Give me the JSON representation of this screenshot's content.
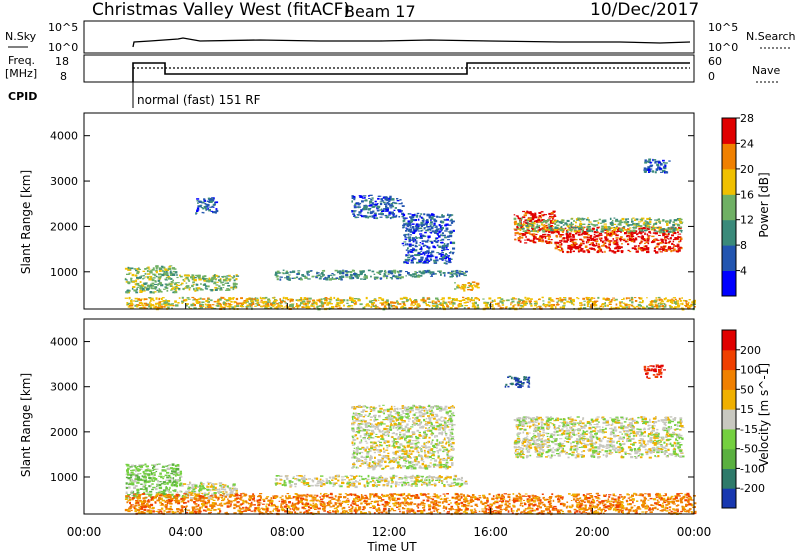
{
  "header": {
    "title": "Christmas Valley West (fitACF)",
    "beam": "Beam 17",
    "date": "10/Dec/2017"
  },
  "status_panels": {
    "nsky_label": "N.Sky",
    "nsky_ticks": [
      "10^5",
      "10^0"
    ],
    "nsearch_label": "N.Search",
    "freq_label_1": "Freq.",
    "freq_label_2": "[MHz]",
    "freq_ticks": [
      "18",
      "8"
    ],
    "nave_ticks": [
      "60",
      "0"
    ],
    "nave_label": "Nave",
    "cpid_label": "CPID",
    "cpid_text": "normal (fast) 151 RF"
  },
  "chart_data": [
    {
      "type": "heatmap",
      "name": "power",
      "ylabel": "Slant Range [km]",
      "yticks": [
        "1000",
        "2000",
        "3000",
        "4000"
      ],
      "ylim": [
        180,
        4500
      ],
      "xlim": [
        0,
        24
      ],
      "colorbar_label": "Power [dB]",
      "colorbar_ticks": [
        "4",
        "8",
        "12",
        "16",
        "20",
        "24",
        "28"
      ],
      "colorbar_colors": [
        "#0000ff",
        "#2255b0",
        "#3a8a7a",
        "#6fb064",
        "#f0c000",
        "#f08000",
        "#e00000"
      ],
      "regions": [
        {
          "x": [
            1.6,
            3.6
          ],
          "y": [
            550,
            1150
          ],
          "level": 3
        },
        {
          "x": [
            3.6,
            6.0
          ],
          "y": [
            600,
            950
          ],
          "level": 3
        },
        {
          "x": [
            7.5,
            12.5
          ],
          "y": [
            850,
            1050
          ],
          "level": 2
        },
        {
          "x": [
            12.5,
            15.0
          ],
          "y": [
            900,
            1050
          ],
          "level": 2
        },
        {
          "x": [
            1.6,
            24
          ],
          "y": [
            200,
            450
          ],
          "level": 4
        },
        {
          "x": [
            16.9,
            18.5
          ],
          "y": [
            1650,
            2350
          ],
          "level": 6
        },
        {
          "x": [
            18.5,
            23.5
          ],
          "y": [
            1450,
            2000
          ],
          "level": 6
        },
        {
          "x": [
            16.9,
            23.5
          ],
          "y": [
            1900,
            2200
          ],
          "level": 3
        },
        {
          "x": [
            4.3,
            5.2
          ],
          "y": [
            2300,
            2650
          ],
          "level": 1
        },
        {
          "x": [
            10.5,
            12.5
          ],
          "y": [
            2200,
            2700
          ],
          "level": 1
        },
        {
          "x": [
            12.5,
            14.5
          ],
          "y": [
            1200,
            2300
          ],
          "level": 1
        },
        {
          "x": [
            14.5,
            15.5
          ],
          "y": [
            600,
            800
          ],
          "level": 4
        },
        {
          "x": [
            22.0,
            23.0
          ],
          "y": [
            3200,
            3500
          ],
          "level": 1
        }
      ]
    },
    {
      "type": "heatmap",
      "name": "velocity",
      "ylabel": "Slant Range [km]",
      "yticks": [
        "1000",
        "2000",
        "3000",
        "4000"
      ],
      "ylim": [
        180,
        4500
      ],
      "xlim": [
        0,
        24
      ],
      "colorbar_label": "Velocity [m s^-1]",
      "colorbar_ticks": [
        "200",
        "100",
        "50",
        "15",
        "-15",
        "-50",
        "-100",
        "-200"
      ],
      "colorbar_colors": [
        "#1838b0",
        "#2e7a6a",
        "#5ab040",
        "#74d040",
        "#c8c8c0",
        "#f0b000",
        "#f08000",
        "#f04000",
        "#e00000"
      ],
      "regions": [
        {
          "x": [
            1.6,
            3.8
          ],
          "y": [
            550,
            1300
          ],
          "level": 3
        },
        {
          "x": [
            3.8,
            6.0
          ],
          "y": [
            550,
            900
          ],
          "level": 4
        },
        {
          "x": [
            7.5,
            15.0
          ],
          "y": [
            800,
            1050
          ],
          "level": 4
        },
        {
          "x": [
            1.6,
            24
          ],
          "y": [
            200,
            650
          ],
          "level": 6
        },
        {
          "x": [
            16.9,
            23.5
          ],
          "y": [
            1450,
            2350
          ],
          "level": 4
        },
        {
          "x": [
            16.5,
            17.5
          ],
          "y": [
            3000,
            3250
          ],
          "level": 0
        },
        {
          "x": [
            22.0,
            22.8
          ],
          "y": [
            3200,
            3500
          ],
          "level": 8
        },
        {
          "x": [
            10.5,
            14.5
          ],
          "y": [
            1200,
            2600
          ],
          "level": 4
        }
      ]
    }
  ],
  "x_axis": {
    "label": "Time UT",
    "ticks": [
      "00:00",
      "04:00",
      "08:00",
      "12:00",
      "16:00",
      "20:00",
      "00:00"
    ]
  }
}
